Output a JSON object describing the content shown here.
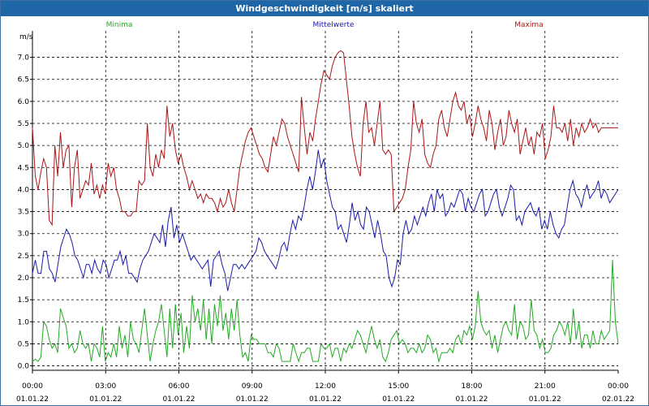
{
  "window": {
    "title": "Windgeschwindigkeit [m/s] skaliert"
  },
  "chart_data": {
    "type": "line",
    "title": "Windgeschwindigkeit [m/s] skaliert",
    "ylabel": "m/s",
    "ylim": [
      -0.1,
      7.6
    ],
    "yticks": [
      "0.0",
      "0.5",
      "1.0",
      "1.5",
      "2.0",
      "2.5",
      "3.0",
      "3.5",
      "4.0",
      "4.5",
      "5.0",
      "5.5",
      "6.0",
      "6.5",
      "7.0"
    ],
    "xticks": [
      {
        "time": "00:00",
        "date": "01.01.22"
      },
      {
        "time": "03:00",
        "date": "01.01.22"
      },
      {
        "time": "06:00",
        "date": "01.01.22"
      },
      {
        "time": "09:00",
        "date": "01.01.22"
      },
      {
        "time": "12:00",
        "date": "01.01.22"
      },
      {
        "time": "15:00",
        "date": "01.01.22"
      },
      {
        "time": "18:00",
        "date": "01.01.22"
      },
      {
        "time": "21:00",
        "date": "01.01.22"
      },
      {
        "time": "00:00",
        "date": "02.01.22"
      }
    ],
    "grid": true,
    "legend": "top",
    "series": [
      {
        "name": "Minima",
        "color": "#22aa22",
        "values": [
          0.1,
          0.15,
          0.1,
          0.2,
          1.0,
          0.9,
          0.6,
          0.4,
          0.5,
          0.3,
          1.3,
          1.1,
          0.9,
          0.4,
          0.5,
          0.3,
          0.4,
          0.8,
          0.5,
          0.4,
          0.5,
          0.1,
          0.5,
          0.4,
          0.2,
          0.9,
          0.1,
          0.3,
          0.2,
          0.5,
          0.2,
          0.9,
          0.4,
          0.7,
          0.2,
          1.0,
          0.6,
          0.5,
          0.3,
          0.8,
          1.3,
          0.7,
          0.1,
          0.5,
          0.8,
          1.0,
          1.4,
          0.8,
          0.2,
          1.3,
          0.4,
          1.4,
          0.7,
          1.2,
          0.3,
          0.9,
          0.4,
          1.6,
          1.0,
          1.3,
          0.8,
          1.5,
          0.6,
          1.3,
          0.5,
          1.4,
          0.9,
          1.6,
          0.8,
          1.2,
          0.6,
          1.3,
          0.8,
          1.5,
          0.7,
          0.2,
          0.3,
          0.1,
          0.7,
          0.6,
          0.6,
          0.5,
          0.5,
          0.5,
          0.3,
          0.3,
          0.2,
          0.5,
          0.4,
          0.1,
          0.1,
          0.1,
          0.1,
          0.5,
          0.3,
          0.1,
          0.3,
          0.3,
          0.4,
          0.4,
          0.1,
          0.1,
          0.1,
          0.5,
          0.4,
          0.4,
          0.5,
          0.2,
          0.4,
          0.4,
          0.1,
          0.4,
          0.3,
          0.5,
          0.4,
          0.6,
          0.8,
          0.7,
          0.5,
          0.3,
          0.6,
          0.9,
          0.6,
          0.4,
          0.6,
          0.2,
          0.1,
          0.3,
          0.6,
          0.7,
          0.8,
          0.5,
          0.6,
          0.5,
          0.3,
          0.4,
          0.4,
          0.3,
          0.5,
          0.3,
          0.4,
          0.7,
          0.6,
          0.3,
          0.4,
          0.1,
          0.3,
          0.3,
          0.3,
          0.4,
          0.3,
          0.6,
          0.7,
          0.5,
          0.8,
          0.7,
          0.9,
          0.6,
          0.9,
          1.7,
          1.0,
          0.8,
          0.7,
          0.8,
          0.4,
          0.7,
          0.3,
          0.6,
          0.9,
          1.0,
          0.8,
          0.7,
          1.4,
          0.6,
          1.0,
          0.9,
          0.6,
          0.7,
          1.5,
          0.8,
          0.7,
          0.4,
          0.6,
          0.3,
          0.3,
          0.4,
          0.7,
          0.8,
          1.0,
          0.9,
          0.7,
          1.0,
          0.5,
          1.3,
          0.6,
          1.0,
          0.4,
          0.7,
          0.7,
          0.4,
          0.8,
          0.5,
          0.5,
          0.8,
          0.6,
          0.7,
          0.8,
          2.4,
          1.0,
          0.5
        ]
      },
      {
        "name": "Mittelwerte",
        "color": "#1a1aaa",
        "values": [
          2.1,
          2.4,
          2.1,
          2.1,
          2.6,
          2.6,
          2.2,
          2.1,
          1.9,
          2.3,
          2.7,
          2.9,
          3.1,
          3.0,
          2.8,
          2.5,
          2.4,
          2.2,
          2.0,
          2.3,
          2.3,
          2.1,
          2.4,
          2.2,
          2.1,
          2.4,
          2.3,
          2.0,
          2.2,
          2.4,
          2.4,
          2.6,
          2.3,
          2.5,
          2.1,
          2.1,
          2.0,
          1.9,
          2.2,
          2.4,
          2.5,
          2.6,
          2.8,
          3.0,
          2.9,
          2.8,
          3.2,
          2.7,
          3.3,
          3.6,
          2.9,
          3.2,
          2.8,
          3.0,
          2.8,
          2.6,
          2.4,
          2.5,
          2.4,
          2.3,
          2.2,
          2.3,
          2.4,
          1.8,
          2.4,
          2.5,
          2.6,
          2.3,
          2.1,
          1.7,
          2.0,
          2.3,
          2.3,
          2.2,
          2.3,
          2.2,
          2.3,
          2.4,
          2.5,
          2.6,
          2.9,
          2.8,
          2.6,
          2.5,
          2.4,
          2.3,
          2.2,
          2.4,
          2.7,
          2.8,
          2.6,
          3.0,
          3.3,
          3.1,
          3.4,
          3.3,
          3.6,
          4.0,
          4.3,
          4.0,
          4.4,
          4.9,
          4.5,
          4.7,
          4.2,
          3.9,
          3.6,
          3.5,
          3.1,
          3.2,
          3.0,
          2.8,
          3.2,
          3.7,
          3.3,
          3.5,
          3.2,
          3.1,
          3.6,
          3.5,
          3.2,
          2.9,
          3.3,
          3.0,
          2.6,
          2.5,
          2.0,
          1.8,
          2.0,
          2.4,
          2.3,
          3.0,
          3.3,
          3.0,
          3.1,
          3.4,
          3.2,
          3.4,
          3.6,
          3.4,
          3.7,
          3.9,
          3.5,
          4.0,
          3.8,
          3.9,
          3.4,
          3.5,
          3.7,
          3.6,
          3.8,
          4.0,
          3.9,
          3.5,
          3.8,
          3.6,
          3.5,
          3.7,
          3.9,
          4.0,
          3.4,
          3.5,
          3.7,
          3.9,
          4.0,
          3.6,
          3.4,
          3.6,
          3.8,
          4.1,
          4.0,
          3.3,
          3.4,
          3.2,
          3.5,
          3.6,
          3.7,
          3.5,
          3.4,
          3.6,
          3.1,
          3.3,
          3.1,
          3.5,
          3.2,
          3.0,
          2.9,
          3.1,
          3.2,
          3.6,
          4.0,
          4.2,
          3.9,
          3.8,
          3.6,
          3.9,
          4.1,
          3.8,
          3.9,
          4.0,
          4.2,
          3.8,
          4.0,
          3.9,
          3.7,
          3.8,
          3.9,
          4.0
        ]
      },
      {
        "name": "Maxima",
        "color": "#aa1515",
        "values": [
          5.4,
          4.3,
          4.0,
          4.4,
          4.7,
          4.5,
          3.3,
          3.2,
          5.0,
          4.3,
          5.3,
          4.5,
          4.9,
          5.0,
          3.6,
          4.5,
          4.9,
          3.8,
          4.0,
          4.2,
          4.1,
          4.6,
          3.9,
          4.1,
          3.8,
          4.1,
          3.9,
          4.6,
          4.3,
          4.5,
          4.0,
          3.8,
          3.5,
          3.5,
          3.4,
          3.4,
          3.5,
          3.5,
          4.2,
          4.1,
          4.2,
          5.5,
          4.5,
          4.3,
          4.8,
          4.5,
          4.9,
          4.7,
          5.9,
          5.2,
          5.5,
          4.9,
          4.6,
          4.8,
          4.5,
          4.3,
          4.0,
          4.2,
          4.0,
          3.8,
          3.9,
          3.7,
          3.9,
          3.8,
          3.8,
          3.7,
          3.5,
          3.8,
          3.6,
          3.7,
          4.0,
          3.7,
          3.5,
          4.0,
          4.5,
          4.8,
          5.1,
          5.3,
          5.4,
          5.2,
          5.0,
          4.8,
          4.7,
          4.5,
          4.4,
          4.8,
          5.2,
          5.0,
          5.3,
          5.6,
          5.5,
          5.2,
          5.0,
          4.8,
          4.6,
          4.4,
          6.1,
          5.4,
          4.8,
          5.3,
          5.1,
          5.6,
          6.0,
          6.4,
          6.7,
          6.6,
          6.5,
          6.8,
          7.0,
          7.1,
          7.15,
          7.1,
          6.5,
          5.9,
          5.2,
          4.8,
          4.5,
          4.3,
          5.5,
          6.0,
          5.3,
          5.4,
          5.0,
          5.5,
          6.0,
          4.9,
          4.8,
          4.9,
          4.8,
          3.5,
          3.6,
          3.7,
          3.8,
          4.0,
          4.5,
          4.9,
          6.0,
          5.5,
          5.3,
          5.6,
          4.8,
          4.6,
          4.5,
          4.8,
          5.0,
          5.6,
          5.8,
          5.4,
          5.2,
          5.6,
          6.0,
          6.2,
          5.9,
          5.8,
          6.0,
          5.5,
          5.7,
          5.2,
          5.5,
          5.9,
          5.6,
          5.4,
          5.1,
          5.8,
          5.5,
          4.9,
          5.3,
          5.6,
          5.0,
          5.2,
          5.8,
          5.5,
          5.3,
          5.6,
          4.8,
          5.1,
          5.4,
          5.0,
          5.2,
          4.8,
          5.3,
          5.2,
          5.5,
          4.7,
          4.9,
          5.2,
          5.9,
          5.4,
          5.4,
          5.3,
          5.5,
          5.1,
          5.6,
          5.0,
          5.4,
          5.2,
          5.5,
          5.3,
          5.4,
          5.6,
          5.4,
          5.5,
          5.3,
          5.4,
          5.4,
          5.4,
          5.4,
          5.4,
          5.4,
          5.4
        ]
      }
    ]
  }
}
